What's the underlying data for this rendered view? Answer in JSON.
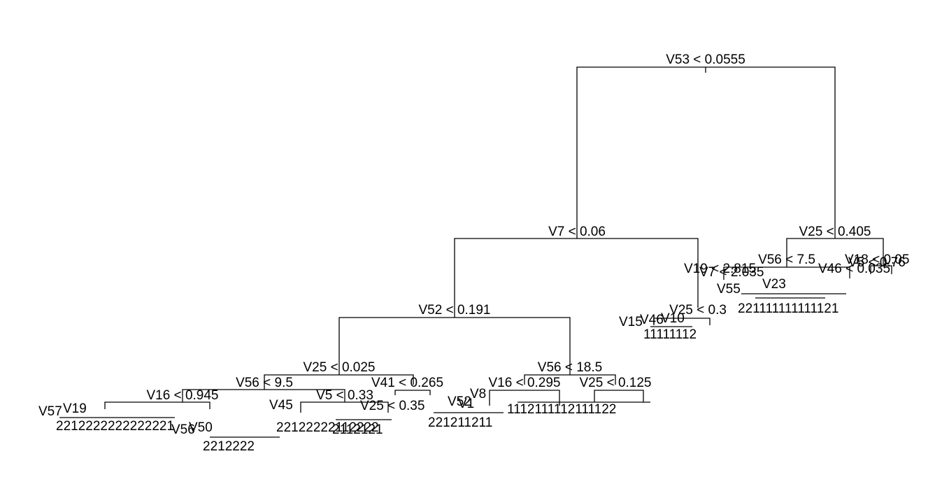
{
  "diagram": {
    "type": "decision-tree",
    "background": "#ffffff",
    "line_color": "#000000",
    "splits": {
      "root": "V53 < 0.0555",
      "left": "V7 < 0.06",
      "right": "V25 < 0.405",
      "left_left": "V52 < 0.191",
      "left_right": "V25 < 0.3",
      "right_left": "V56 < 7.5",
      "right_right": "V18 < 0.05",
      "lll": "V25 < 0.025",
      "llr": "V56 < 18.5",
      "llll": "V56 < 9.5",
      "lllr": "V41 < 0.265",
      "llrl": "V16 < 0.295",
      "llrr": "V25 < 0.125",
      "lllll": "V16 < 0.945",
      "llllr": "V5 < 0.33"
    },
    "dense_labels": {
      "r_cluster_1": "V19 < 2.815",
      "r_cluster_2": "V7 < 2.035",
      "r_cluster_3": "V46 < 0.035",
      "r_cluster_4": "V5 < 0.76",
      "r_cluster_5": "V55",
      "r_cluster_6": "V23",
      "lr_cluster_1": "V15",
      "lr_cluster_2": "V46",
      "lr_cluster_3": "V10",
      "ll_cluster_1": "V57",
      "ll_cluster_2": "V19",
      "ll_cluster_3": "V45",
      "ll_cluster_4": "V25 < 0.35",
      "llr_cluster_1": "V8",
      "llr_cluster_2": "V52",
      "llr_cluster_3": "V1",
      "ll_bottom": "V56",
      "ll_bottom_2": "V50"
    },
    "leaf_rows": {
      "row_a": "221111111111121",
      "row_b": "11111112",
      "row_c": "221211211",
      "row_d": "1112111112111122",
      "row_e": "2212222222222221",
      "row_f": "22122222112222",
      "row_g": "2112121",
      "row_h": "2212222"
    }
  }
}
